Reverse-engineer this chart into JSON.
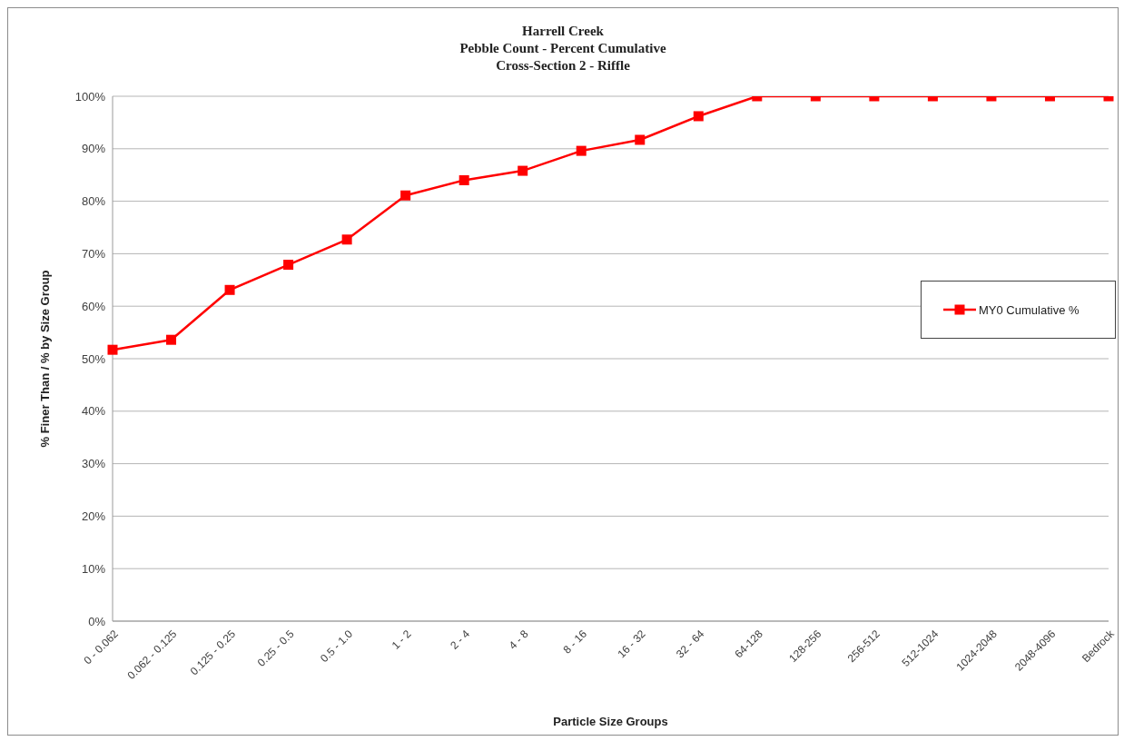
{
  "chart_data": {
    "type": "line",
    "title": "Harrell Creek\nPebble Count - Percent Cumulative\nCross-Section 2 - Riffle",
    "xlabel": "Particle Size Groups",
    "ylabel": "% Finer Than / % by Size Group",
    "categories": [
      "0 - 0.062",
      "0.062 - 0.125",
      "0.125 - 0.25",
      "0.25 - 0.5",
      "0.5 - 1.0",
      "1 - 2",
      "2 - 4",
      "4 - 8",
      "8 - 16",
      "16 - 32",
      "32 - 64",
      "64-128",
      "128-256",
      "256-512",
      "512-1024",
      "1024-2048",
      "2048-4096",
      "Bedrock"
    ],
    "series": [
      {
        "name": "MY0 Cumulative %",
        "color": "#ff0000",
        "values": [
          51.7,
          53.6,
          63.1,
          67.9,
          72.7,
          81.1,
          84.0,
          85.8,
          89.6,
          91.7,
          96.2,
          100,
          100,
          100,
          100,
          100,
          100,
          100
        ]
      }
    ],
    "ylim": [
      0,
      100
    ],
    "yticks": [
      {
        "value": 0,
        "label": "0%"
      },
      {
        "value": 10,
        "label": "10%"
      },
      {
        "value": 20,
        "label": "20%"
      },
      {
        "value": 30,
        "label": "30%"
      },
      {
        "value": 40,
        "label": "40%"
      },
      {
        "value": 50,
        "label": "50%"
      },
      {
        "value": 60,
        "label": "60%"
      },
      {
        "value": 70,
        "label": "70%"
      },
      {
        "value": 80,
        "label": "80%"
      },
      {
        "value": 90,
        "label": "90%"
      },
      {
        "value": 100,
        "label": "100%"
      }
    ],
    "grid": "y",
    "legend": "right",
    "marker": "square",
    "line_style": "solid"
  }
}
